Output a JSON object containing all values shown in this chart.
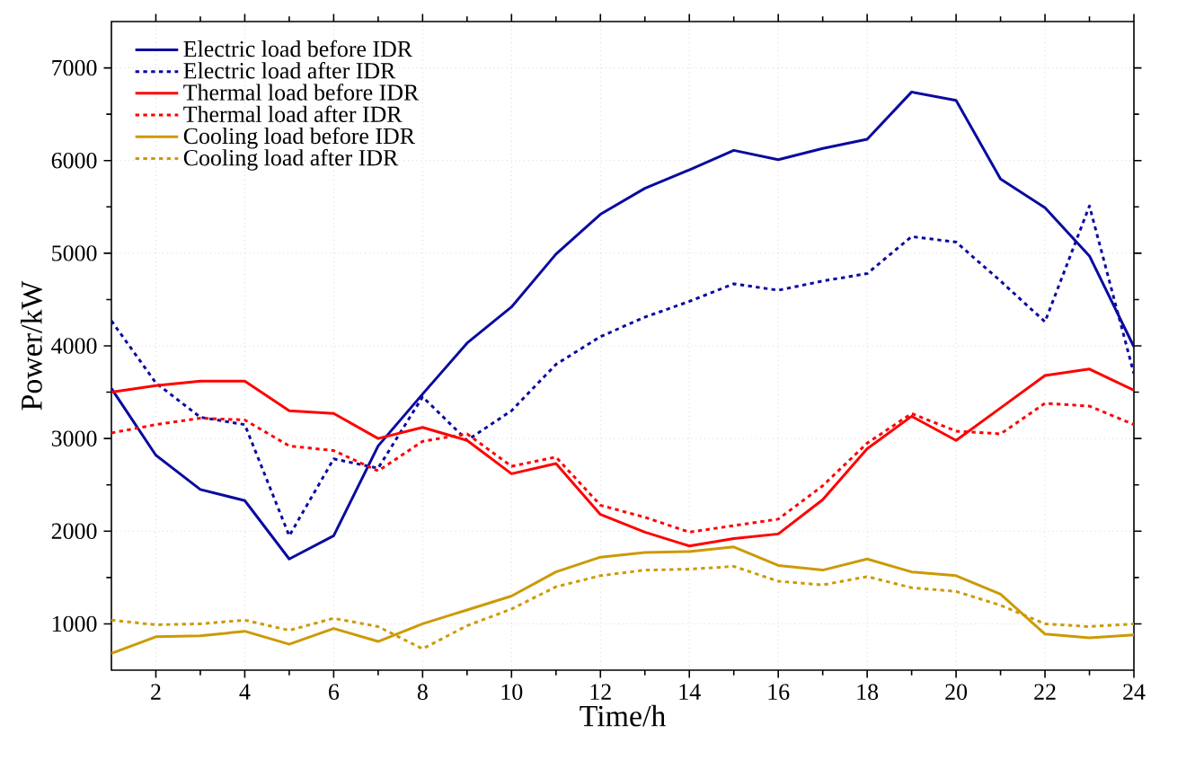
{
  "chart_data": {
    "type": "line",
    "xlabel": "Time/h",
    "ylabel": "Power/kW",
    "x": [
      1,
      2,
      3,
      4,
      5,
      6,
      7,
      8,
      9,
      10,
      11,
      12,
      13,
      14,
      15,
      16,
      17,
      18,
      19,
      20,
      21,
      22,
      23,
      24
    ],
    "xlim": [
      1,
      24
    ],
    "xticks": [
      2,
      4,
      6,
      8,
      10,
      12,
      14,
      16,
      18,
      20,
      22,
      24
    ],
    "ylim": [
      500,
      7500
    ],
    "yticks": [
      1000,
      2000,
      3000,
      4000,
      5000,
      6000,
      7000
    ],
    "grid": true,
    "legend": "top left",
    "series": [
      {
        "name": "Electric load before IDR",
        "color": "#0a0aa0",
        "line_style": "solid",
        "values": [
          3540,
          2820,
          2450,
          2330,
          1700,
          1950,
          2920,
          3480,
          4030,
          4420,
          4990,
          5420,
          5700,
          5900,
          6110,
          6010,
          6130,
          6230,
          6740,
          6650,
          5800,
          5490,
          4970,
          3990
        ]
      },
      {
        "name": "Electric load after IDR",
        "color": "#0a0aa0",
        "line_style": "dotted",
        "values": [
          4270,
          3600,
          3230,
          3150,
          1950,
          2780,
          2680,
          3450,
          2980,
          3300,
          3800,
          4100,
          4310,
          4480,
          4670,
          4600,
          4700,
          4780,
          5180,
          5120,
          4700,
          4260,
          5510,
          3700
        ]
      },
      {
        "name": "Thermal load before IDR",
        "color": "#ff0000",
        "line_style": "solid",
        "values": [
          3500,
          3570,
          3620,
          3620,
          3300,
          3270,
          3000,
          3120,
          2980,
          2620,
          2730,
          2180,
          1990,
          1840,
          1920,
          1970,
          2340,
          2890,
          3240,
          2980,
          3330,
          3680,
          3750,
          3520
        ]
      },
      {
        "name": "Thermal load after IDR",
        "color": "#ff0000",
        "line_style": "dotted",
        "values": [
          3060,
          3150,
          3220,
          3200,
          2920,
          2870,
          2650,
          2970,
          3050,
          2700,
          2800,
          2280,
          2150,
          1990,
          2060,
          2130,
          2490,
          2950,
          3270,
          3080,
          3050,
          3380,
          3350,
          3150
        ]
      },
      {
        "name": "Cooling load before IDR",
        "color": "#cc9a06",
        "line_style": "solid",
        "values": [
          680,
          860,
          870,
          920,
          780,
          950,
          810,
          1000,
          1150,
          1300,
          1560,
          1720,
          1770,
          1780,
          1830,
          1630,
          1580,
          1700,
          1560,
          1520,
          1320,
          890,
          850,
          880
        ]
      },
      {
        "name": "Cooling load after IDR",
        "color": "#cc9a06",
        "line_style": "dotted",
        "values": [
          1040,
          990,
          1000,
          1040,
          930,
          1060,
          970,
          730,
          980,
          1160,
          1400,
          1520,
          1580,
          1590,
          1620,
          1460,
          1420,
          1510,
          1390,
          1350,
          1200,
          1000,
          970,
          1000
        ]
      }
    ]
  }
}
